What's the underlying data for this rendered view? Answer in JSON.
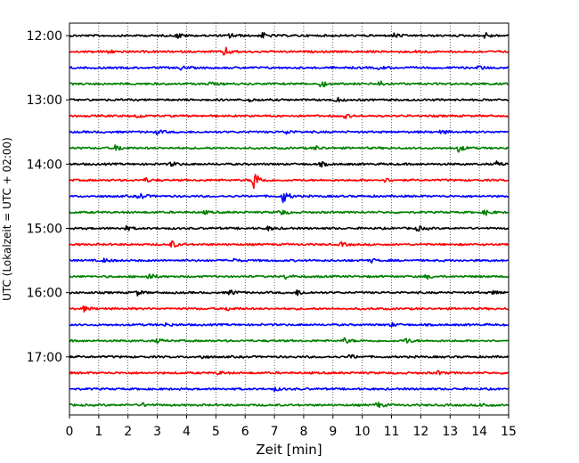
{
  "chart_data": {
    "type": "line",
    "title": "",
    "xlabel": "Zeit  [min]",
    "ylabel": "UTC (Lokalzeit = UTC + 02:00)",
    "xlim": [
      0,
      15
    ],
    "x_ticks": [
      "0",
      "1",
      "2",
      "3",
      "4",
      "5",
      "6",
      "7",
      "8",
      "9",
      "10",
      "11",
      "12",
      "13",
      "14",
      "15"
    ],
    "y_ticks": [
      {
        "label": "12:00",
        "row": 0
      },
      {
        "label": "13:00",
        "row": 4
      },
      {
        "label": "14:00",
        "row": 8
      },
      {
        "label": "15:00",
        "row": 12
      },
      {
        "label": "16:00",
        "row": 16
      },
      {
        "label": "17:00",
        "row": 20
      }
    ],
    "row_minutes": 15,
    "colors": [
      "#000000",
      "#ff0000",
      "#0000ff",
      "#008000"
    ],
    "rows": [
      {
        "start": "12:00",
        "color": "#000000",
        "events": [
          {
            "t": 3.7,
            "a": 0.35
          },
          {
            "t": 5.5,
            "a": 0.35
          },
          {
            "t": 6.6,
            "a": 0.35
          },
          {
            "t": 11.1,
            "a": 0.3
          },
          {
            "t": 14.2,
            "a": 0.35
          }
        ]
      },
      {
        "start": "12:15",
        "color": "#ff0000",
        "events": [
          {
            "t": 5.3,
            "a": 0.6
          },
          {
            "t": 1.3,
            "a": 0.25
          },
          {
            "t": 11.9,
            "a": 0.25
          }
        ]
      },
      {
        "start": "12:30",
        "color": "#0000ff",
        "events": [
          {
            "t": 3.8,
            "a": 0.2
          },
          {
            "t": 10.6,
            "a": 0.2
          },
          {
            "t": 14.0,
            "a": 0.25
          }
        ]
      },
      {
        "start": "12:45",
        "color": "#008000",
        "events": [
          {
            "t": 8.6,
            "a": 0.45
          },
          {
            "t": 10.6,
            "a": 0.4
          },
          {
            "t": 4.8,
            "a": 0.2
          },
          {
            "t": 13.8,
            "a": 0.25
          }
        ]
      },
      {
        "start": "13:00",
        "color": "#000000",
        "events": [
          {
            "t": 9.1,
            "a": 0.3
          },
          {
            "t": 6.1,
            "a": 0.25
          }
        ]
      },
      {
        "start": "13:15",
        "color": "#ff0000",
        "events": [
          {
            "t": 2.3,
            "a": 0.25
          },
          {
            "t": 9.4,
            "a": 0.25
          }
        ]
      },
      {
        "start": "13:30",
        "color": "#0000ff",
        "events": [
          {
            "t": 3.0,
            "a": 0.25
          },
          {
            "t": 7.4,
            "a": 0.3
          },
          {
            "t": 12.7,
            "a": 0.25
          }
        ]
      },
      {
        "start": "13:45",
        "color": "#008000",
        "events": [
          {
            "t": 1.6,
            "a": 0.45
          },
          {
            "t": 13.3,
            "a": 0.45
          },
          {
            "t": 8.4,
            "a": 0.25
          }
        ]
      },
      {
        "start": "14:00",
        "color": "#000000",
        "events": [
          {
            "t": 3.5,
            "a": 0.3
          },
          {
            "t": 8.6,
            "a": 0.25
          },
          {
            "t": 14.6,
            "a": 0.3
          }
        ]
      },
      {
        "start": "14:15",
        "color": "#ff0000",
        "events": [
          {
            "t": 6.3,
            "a": 1.4
          },
          {
            "t": 2.6,
            "a": 0.25
          },
          {
            "t": 10.8,
            "a": 0.25
          }
        ]
      },
      {
        "start": "14:30",
        "color": "#0000ff",
        "events": [
          {
            "t": 7.3,
            "a": 0.8
          },
          {
            "t": 2.4,
            "a": 0.45
          }
        ]
      },
      {
        "start": "14:45",
        "color": "#008000",
        "events": [
          {
            "t": 7.2,
            "a": 0.4
          },
          {
            "t": 14.2,
            "a": 0.35
          },
          {
            "t": 4.6,
            "a": 0.2
          }
        ]
      },
      {
        "start": "15:00",
        "color": "#000000",
        "events": [
          {
            "t": 1.9,
            "a": 0.3
          },
          {
            "t": 11.9,
            "a": 0.3
          },
          {
            "t": 6.8,
            "a": 0.25
          }
        ]
      },
      {
        "start": "15:15",
        "color": "#ff0000",
        "events": [
          {
            "t": 3.5,
            "a": 0.45
          },
          {
            "t": 9.3,
            "a": 0.25
          }
        ]
      },
      {
        "start": "15:30",
        "color": "#0000ff",
        "events": [
          {
            "t": 1.2,
            "a": 0.25
          },
          {
            "t": 10.3,
            "a": 0.25
          },
          {
            "t": 5.6,
            "a": 0.2
          }
        ]
      },
      {
        "start": "15:45",
        "color": "#008000",
        "events": [
          {
            "t": 2.7,
            "a": 0.45
          },
          {
            "t": 7.4,
            "a": 0.3
          },
          {
            "t": 12.2,
            "a": 0.25
          }
        ]
      },
      {
        "start": "16:00",
        "color": "#000000",
        "events": [
          {
            "t": 2.3,
            "a": 0.35
          },
          {
            "t": 5.5,
            "a": 0.35
          },
          {
            "t": 7.8,
            "a": 0.35
          },
          {
            "t": 14.5,
            "a": 0.3
          }
        ]
      },
      {
        "start": "16:15",
        "color": "#ff0000",
        "events": [
          {
            "t": 0.5,
            "a": 0.3
          },
          {
            "t": 5.4,
            "a": 0.25
          }
        ]
      },
      {
        "start": "16:30",
        "color": "#0000ff",
        "events": [
          {
            "t": 3.3,
            "a": 0.2
          },
          {
            "t": 11.0,
            "a": 0.2
          }
        ]
      },
      {
        "start": "16:45",
        "color": "#008000",
        "events": [
          {
            "t": 9.4,
            "a": 0.35
          },
          {
            "t": 11.5,
            "a": 0.35
          },
          {
            "t": 3.0,
            "a": 0.2
          }
        ]
      },
      {
        "start": "17:00",
        "color": "#000000",
        "events": [
          {
            "t": 9.6,
            "a": 0.25
          },
          {
            "t": 4.5,
            "a": 0.2
          }
        ]
      },
      {
        "start": "17:15",
        "color": "#ff0000",
        "events": [
          {
            "t": 5.1,
            "a": 0.2
          },
          {
            "t": 12.6,
            "a": 0.2
          }
        ]
      },
      {
        "start": "17:30",
        "color": "#0000ff",
        "events": [
          {
            "t": 7.0,
            "a": 0.2
          }
        ]
      },
      {
        "start": "17:45",
        "color": "#008000",
        "events": [
          {
            "t": 10.5,
            "a": 0.4
          },
          {
            "t": 14.1,
            "a": 0.3
          },
          {
            "t": 2.5,
            "a": 0.2
          }
        ]
      }
    ]
  }
}
